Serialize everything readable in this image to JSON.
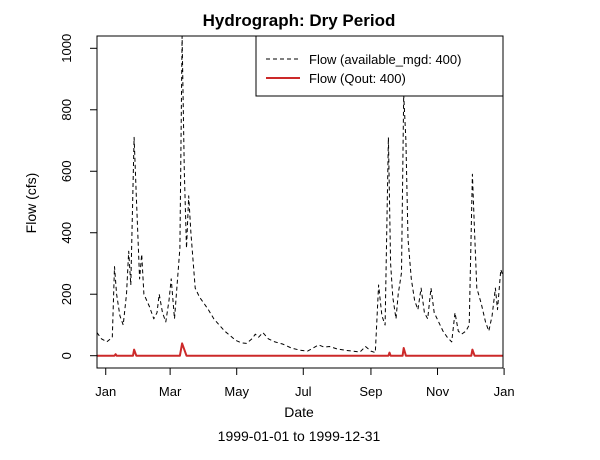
{
  "chart_data": {
    "type": "line",
    "title": "Hydrograph: Dry Period",
    "xlabel": "Date",
    "ylabel": "Flow (cfs)",
    "subtitle": "1999-01-01 to 1999-12-31",
    "xlim": [
      "1998-12-24",
      "1999-12-31"
    ],
    "ylim": [
      -40,
      1040
    ],
    "x_ticks": [
      {
        "date": "1999-01-01",
        "label": "Jan"
      },
      {
        "date": "1999-03-01",
        "label": "Mar"
      },
      {
        "date": "1999-05-01",
        "label": "May"
      },
      {
        "date": "1999-07-01",
        "label": "Jul"
      },
      {
        "date": "1999-09-01",
        "label": "Sep"
      },
      {
        "date": "1999-11-01",
        "label": "Nov"
      },
      {
        "date": "2000-01-01",
        "label": "Jan"
      }
    ],
    "y_ticks": [
      0,
      200,
      400,
      600,
      800,
      1000
    ],
    "grid": false,
    "legend_position": "top-right",
    "series": [
      {
        "name": "Flow (available_mgd: 400)",
        "color": "#000000",
        "style": "dashed",
        "points": [
          [
            "1998-12-24",
            75
          ],
          [
            "1998-12-28",
            55
          ],
          [
            "1999-01-02",
            45
          ],
          [
            "1999-01-07",
            60
          ],
          [
            "1999-01-09",
            290
          ],
          [
            "1999-01-11",
            200
          ],
          [
            "1999-01-14",
            130
          ],
          [
            "1999-01-17",
            100
          ],
          [
            "1999-01-20",
            200
          ],
          [
            "1999-01-22",
            340
          ],
          [
            "1999-01-24",
            230
          ],
          [
            "1999-01-27",
            710
          ],
          [
            "1999-01-29",
            520
          ],
          [
            "1999-02-01",
            250
          ],
          [
            "1999-02-03",
            330
          ],
          [
            "1999-02-05",
            200
          ],
          [
            "1999-02-10",
            160
          ],
          [
            "1999-02-14",
            120
          ],
          [
            "1999-02-17",
            140
          ],
          [
            "1999-02-19",
            200
          ],
          [
            "1999-02-22",
            140
          ],
          [
            "1999-02-25",
            110
          ],
          [
            "1999-02-28",
            180
          ],
          [
            "1999-03-02",
            250
          ],
          [
            "1999-03-05",
            120
          ],
          [
            "1999-03-10",
            350
          ],
          [
            "1999-03-12",
            1040
          ],
          [
            "1999-03-14",
            600
          ],
          [
            "1999-03-16",
            350
          ],
          [
            "1999-03-18",
            520
          ],
          [
            "1999-03-20",
            400
          ],
          [
            "1999-03-24",
            220
          ],
          [
            "1999-03-28",
            190
          ],
          [
            "1999-04-01",
            170
          ],
          [
            "1999-04-05",
            150
          ],
          [
            "1999-04-10",
            120
          ],
          [
            "1999-04-15",
            100
          ],
          [
            "1999-04-20",
            80
          ],
          [
            "1999-04-25",
            65
          ],
          [
            "1999-04-30",
            50
          ],
          [
            "1999-05-05",
            42
          ],
          [
            "1999-05-10",
            40
          ],
          [
            "1999-05-15",
            55
          ],
          [
            "1999-05-18",
            70
          ],
          [
            "1999-05-21",
            60
          ],
          [
            "1999-05-25",
            75
          ],
          [
            "1999-05-30",
            55
          ],
          [
            "1999-06-05",
            45
          ],
          [
            "1999-06-12",
            38
          ],
          [
            "1999-06-20",
            25
          ],
          [
            "1999-06-28",
            18
          ],
          [
            "1999-07-05",
            15
          ],
          [
            "1999-07-10",
            25
          ],
          [
            "1999-07-15",
            35
          ],
          [
            "1999-07-20",
            28
          ],
          [
            "1999-07-25",
            30
          ],
          [
            "1999-08-01",
            22
          ],
          [
            "1999-08-08",
            18
          ],
          [
            "1999-08-15",
            15
          ],
          [
            "1999-08-22",
            12
          ],
          [
            "1999-08-27",
            30
          ],
          [
            "1999-09-01",
            15
          ],
          [
            "1999-09-05",
            10
          ],
          [
            "1999-09-08",
            230
          ],
          [
            "1999-09-11",
            130
          ],
          [
            "1999-09-14",
            100
          ],
          [
            "1999-09-17",
            710
          ],
          [
            "1999-09-19",
            300
          ],
          [
            "1999-09-21",
            190
          ],
          [
            "1999-09-24",
            120
          ],
          [
            "1999-09-26",
            200
          ],
          [
            "1999-09-29",
            270
          ],
          [
            "1999-10-01",
            850
          ],
          [
            "1999-10-03",
            700
          ],
          [
            "1999-10-05",
            380
          ],
          [
            "1999-10-08",
            250
          ],
          [
            "1999-10-11",
            180
          ],
          [
            "1999-10-14",
            150
          ],
          [
            "1999-10-17",
            220
          ],
          [
            "1999-10-20",
            140
          ],
          [
            "1999-10-23",
            120
          ],
          [
            "1999-10-26",
            220
          ],
          [
            "1999-10-29",
            140
          ],
          [
            "1999-11-02",
            110
          ],
          [
            "1999-11-06",
            80
          ],
          [
            "1999-11-10",
            60
          ],
          [
            "1999-11-14",
            45
          ],
          [
            "1999-11-17",
            140
          ],
          [
            "1999-11-20",
            80
          ],
          [
            "1999-11-23",
            70
          ],
          [
            "1999-11-27",
            80
          ],
          [
            "1999-11-30",
            100
          ],
          [
            "1999-12-03",
            590
          ],
          [
            "1999-12-05",
            400
          ],
          [
            "1999-12-07",
            220
          ],
          [
            "1999-12-11",
            170
          ],
          [
            "1999-12-15",
            110
          ],
          [
            "1999-12-18",
            80
          ],
          [
            "1999-12-21",
            130
          ],
          [
            "1999-12-24",
            220
          ],
          [
            "1999-12-26",
            150
          ],
          [
            "1999-12-29",
            280
          ],
          [
            "1999-12-31",
            260
          ]
        ]
      },
      {
        "name": "Flow (Qout: 400)",
        "color": "#cc2929",
        "style": "solid",
        "points": [
          [
            "1998-12-24",
            0
          ],
          [
            "1999-01-09",
            0
          ],
          [
            "1999-01-10",
            5
          ],
          [
            "1999-01-11",
            0
          ],
          [
            "1999-01-26",
            0
          ],
          [
            "1999-01-27",
            20
          ],
          [
            "1999-01-29",
            0
          ],
          [
            "1999-03-10",
            0
          ],
          [
            "1999-03-12",
            40
          ],
          [
            "1999-03-14",
            20
          ],
          [
            "1999-03-16",
            0
          ],
          [
            "1999-09-17",
            0
          ],
          [
            "1999-09-18",
            10
          ],
          [
            "1999-09-19",
            0
          ],
          [
            "1999-09-30",
            0
          ],
          [
            "1999-10-01",
            25
          ],
          [
            "1999-10-03",
            0
          ],
          [
            "1999-12-02",
            0
          ],
          [
            "1999-12-03",
            20
          ],
          [
            "1999-12-05",
            0
          ],
          [
            "1999-12-31",
            0
          ]
        ]
      }
    ]
  }
}
